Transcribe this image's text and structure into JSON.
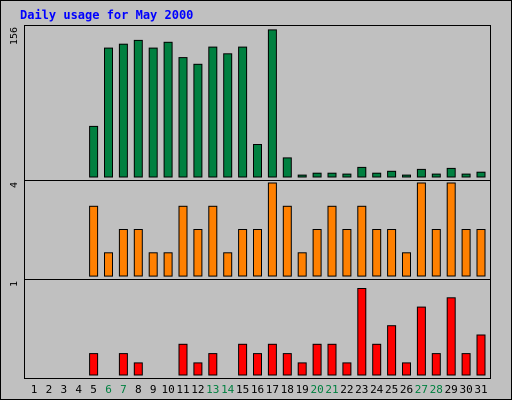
{
  "chart_data": {
    "type": "bar",
    "title": "Daily usage for May 2000",
    "categories": [
      "1",
      "2",
      "3",
      "4",
      "5",
      "6",
      "7",
      "8",
      "9",
      "10",
      "11",
      "12",
      "13",
      "14",
      "15",
      "16",
      "17",
      "18",
      "19",
      "20",
      "21",
      "22",
      "23",
      "24",
      "25",
      "26",
      "27",
      "28",
      "29",
      "30",
      "31"
    ],
    "weekend_days": [
      "6",
      "7",
      "13",
      "14",
      "20",
      "21",
      "27",
      "28"
    ],
    "panels": [
      {
        "name": "",
        "max_label": "156",
        "ylim": [
          0,
          156
        ],
        "color": "#008040",
        "values": [
          0,
          0,
          0,
          0,
          53,
          135,
          139,
          143,
          135,
          141,
          125,
          118,
          136,
          129,
          136,
          34,
          154,
          20,
          2,
          4,
          4,
          3,
          10,
          4,
          6,
          2,
          8,
          3,
          9,
          3,
          5
        ]
      },
      {
        "name": "",
        "max_label": "4",
        "ylim": [
          0,
          4
        ],
        "color": "#ff8000",
        "values": [
          0,
          0,
          0,
          0,
          3,
          1,
          2,
          2,
          1,
          1,
          3,
          2,
          3,
          1,
          2,
          2,
          4,
          3,
          1,
          2,
          3,
          2,
          3,
          2,
          2,
          1,
          4,
          2,
          4,
          2,
          2
        ]
      },
      {
        "name": "",
        "max_label": "1",
        "ylim": [
          0,
          1
        ],
        "color": "#ff0000",
        "values": [
          0,
          0,
          0,
          0,
          0.23,
          0,
          0.23,
          0.13,
          0,
          0,
          0.33,
          0.13,
          0.23,
          0,
          0.33,
          0.23,
          0.33,
          0.23,
          0.13,
          0.33,
          0.33,
          0.13,
          0.93,
          0.33,
          0.53,
          0.13,
          0.73,
          0.23,
          0.83,
          0.23,
          0.43
        ]
      }
    ],
    "grid": false,
    "legend": "none"
  }
}
